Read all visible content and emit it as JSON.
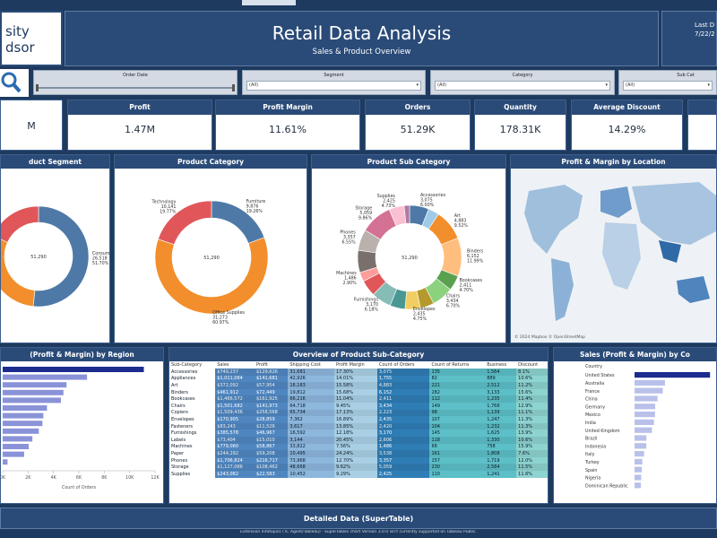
{
  "header": {
    "logo": [
      "sity",
      "dsor"
    ],
    "title": "Retail Data Analysis",
    "subtitle": "Sales & Product Overview",
    "last_updated_label": "Last D",
    "last_updated": "7/22/2"
  },
  "filters": [
    {
      "label": "Order Date"
    },
    {
      "label": "Segment",
      "value": "(All)"
    },
    {
      "label": "Category",
      "value": "(All)"
    },
    {
      "label": "Sub Cat",
      "value": "(All)"
    }
  ],
  "kpis": [
    {
      "value": "M"
    },
    {
      "label": "Profit",
      "value": "1.47M"
    },
    {
      "label": "Profit Margin",
      "value": "11.61%"
    },
    {
      "label": "Orders",
      "value": "51.29K"
    },
    {
      "label": "Quantity",
      "value": "178.31K"
    },
    {
      "label": "Average Discount",
      "value": "14.29%"
    }
  ],
  "segment_chart": {
    "type": "donut",
    "title": "duct Segment",
    "total": "51,290",
    "slices": [
      {
        "name": "Consumer",
        "value": 26518,
        "value_label": "26,518",
        "share": "51.70%",
        "color": "#4e79a7"
      },
      {
        "value": 15429,
        "color": "#f28e2b"
      },
      {
        "value": 9343,
        "color": "#e15759"
      }
    ]
  },
  "category_chart": {
    "type": "donut",
    "title": "Product Category",
    "total": "51,290",
    "slices": [
      {
        "name": "Furniture",
        "value": 9876,
        "value_label": "9,876",
        "share": "19.26%",
        "color": "#4e79a7"
      },
      {
        "name": "Office Supplies",
        "value": 31273,
        "value_label": "31,273",
        "share": "60.97%",
        "color": "#f28e2b"
      },
      {
        "name": "Technology",
        "value": 10141,
        "value_label": "10,141",
        "share": "19.77%",
        "color": "#e15759"
      }
    ]
  },
  "subcategory_chart": {
    "type": "donut",
    "title": "Product Sub Category",
    "total": "51,290",
    "slices": [
      {
        "name": "Accessories",
        "value": 3075,
        "value_label": "3,075",
        "share": "6.00%",
        "color": "#4e79a7"
      },
      {
        "value": 1755,
        "color": "#a0cbe8"
      },
      {
        "name": "Art",
        "value": 4883,
        "value_label": "4,883",
        "share": "9.52%",
        "color": "#f28e2b"
      },
      {
        "name": "Binders",
        "value": 6152,
        "value_label": "6,152",
        "share": "11.99%",
        "color": "#ffbe7d"
      },
      {
        "name": "Bookcases",
        "value": 2411,
        "value_label": "2,411",
        "share": "4.70%",
        "color": "#59a14f"
      },
      {
        "name": "Chairs",
        "value": 3434,
        "value_label": "3,434",
        "share": "6.70%",
        "color": "#8cd17d"
      },
      {
        "value": 2223,
        "color": "#b6992d"
      },
      {
        "name": "Envelopes",
        "value": 2435,
        "value_label": "2,435",
        "share": "4.75%",
        "color": "#f1ce63"
      },
      {
        "value": 2420,
        "color": "#499894"
      },
      {
        "name": "Furnishings",
        "value": 3170,
        "value_label": "3,170",
        "share": "6.18%",
        "color": "#86bcb6"
      },
      {
        "value": 2606,
        "color": "#e15759"
      },
      {
        "name": "Machines",
        "value": 1486,
        "value_label": "1,486",
        "share": "2.90%",
        "color": "#ff9d9a"
      },
      {
        "value": 3538,
        "color": "#79706e"
      },
      {
        "name": "Phones",
        "value": 3357,
        "value_label": "3,357",
        "share": "6.55%",
        "color": "#bab0ac"
      },
      {
        "name": "Storage",
        "value": 5059,
        "value_label": "5,059",
        "share": "9.86%",
        "color": "#d37295"
      },
      {
        "name": "Supplies",
        "value": 2425,
        "value_label": "2,425",
        "share": "4.73%",
        "color": "#fabfd2"
      },
      {
        "value": 861,
        "color": "#b07aa1"
      }
    ]
  },
  "map_panel": {
    "title": "Profit & Margin by Location",
    "attribution": "© 2024 Mapbox © OpenStreetMap"
  },
  "region_chart": {
    "type": "hbar",
    "title": "(Profit & Margin) by Region",
    "axis_label": "Count of Orders",
    "values": [
      11117,
      6645,
      5029,
      4785,
      4587,
      3487,
      3203,
      3129,
      2848,
      2338,
      2048,
      1690,
      384
    ],
    "color": "#8a93d8",
    "highlight_color": "#1c2b8f",
    "highlight": 0,
    "xlim": [
      0,
      12000
    ],
    "xticks": [
      {
        "value": 0,
        "label": "0K"
      },
      {
        "value": 2000,
        "label": "2K"
      },
      {
        "value": 4000,
        "label": "4K"
      },
      {
        "value": 6000,
        "label": "6K"
      },
      {
        "value": 8000,
        "label": "8K"
      },
      {
        "value": 10000,
        "label": "10K"
      },
      {
        "value": 12000,
        "label": "12K"
      }
    ]
  },
  "subcategory_table": {
    "title": "Overview of Product Sub-Category",
    "columns": [
      "Sub-Category",
      "Sales",
      "Profit",
      "Shipping Cost",
      "Profit Margin",
      "Count of Orders",
      "Count of Returns",
      "Business",
      "Discount"
    ],
    "rows": [
      [
        "Accessories",
        "$749,237",
        "$129,626",
        "31,681",
        "17.30%",
        "3,075",
        "135",
        "1,564",
        "8.1%"
      ],
      [
        "Appliances",
        "$1,011,064",
        "$141,681",
        "42,926",
        "14.01%",
        "1,755",
        "82",
        "889",
        "10.6%"
      ],
      [
        "Art",
        "$372,092",
        "$57,954",
        "16,183",
        "15.58%",
        "4,883",
        "221",
        "2,512",
        "11.2%"
      ],
      [
        "Binders",
        "$461,912",
        "$72,449",
        "19,812",
        "15.68%",
        "6,152",
        "282",
        "3,133",
        "15.6%"
      ],
      [
        "Bookcases",
        "$1,466,572",
        "$161,925",
        "66,216",
        "11.04%",
        "2,411",
        "112",
        "1,235",
        "11.4%"
      ],
      [
        "Chairs",
        "$1,501,682",
        "$141,973",
        "64,718",
        "9.45%",
        "3,434",
        "149",
        "1,768",
        "12.9%"
      ],
      [
        "Copiers",
        "$1,509,436",
        "$258,568",
        "65,734",
        "17.13%",
        "2,223",
        "98",
        "1,139",
        "11.1%"
      ],
      [
        "Envelopes",
        "$170,905",
        "$28,859",
        "7,362",
        "16.89%",
        "2,435",
        "107",
        "1,247",
        "11.3%"
      ],
      [
        "Fasteners",
        "$83,243",
        "$11,526",
        "3,617",
        "13.85%",
        "2,420",
        "104",
        "1,232",
        "11.3%"
      ],
      [
        "Furnishings",
        "$385,578",
        "$46,967",
        "16,592",
        "12.18%",
        "3,170",
        "145",
        "1,625",
        "13.9%"
      ],
      [
        "Labels",
        "$73,404",
        "$15,010",
        "3,144",
        "20.45%",
        "2,606",
        "118",
        "1,330",
        "10.6%"
      ],
      [
        "Machines",
        "$779,060",
        "$58,867",
        "33,822",
        "7.56%",
        "1,486",
        "66",
        "758",
        "15.9%"
      ],
      [
        "Paper",
        "$244,292",
        "$59,208",
        "10,495",
        "24.24%",
        "3,538",
        "161",
        "1,808",
        "7.6%"
      ],
      [
        "Phones",
        "$1,706,824",
        "$216,717",
        "73,968",
        "12.70%",
        "3,357",
        "157",
        "1,719",
        "12.0%"
      ],
      [
        "Storage",
        "$1,127,086",
        "$108,462",
        "48,668",
        "9.62%",
        "5,059",
        "230",
        "2,584",
        "11.5%"
      ],
      [
        "Supplies",
        "$243,082",
        "$22,583",
        "10,452",
        "9.29%",
        "2,425",
        "110",
        "1,241",
        "11.6%"
      ]
    ]
  },
  "country_chart": {
    "type": "hbar",
    "title": "Sales (Profit & Margin) by Co",
    "axis_label": "Country",
    "categories": [
      "United States",
      "Australia",
      "France",
      "China",
      "Germany",
      "Mexico",
      "India",
      "United Kingdom",
      "Brazil",
      "Indonesia",
      "Italy",
      "Turkey",
      "Spain",
      "Nigeria",
      "Dominican Republic"
    ],
    "values": [
      2297201,
      925236,
      858931,
      700562,
      628840,
      622591,
      589650,
      528576,
      361106,
      358124,
      289710,
      235770,
      221920,
      203591,
      193716
    ],
    "color": "#b9c0ea",
    "highlight_color": "#1c2b8f",
    "highlight": 0,
    "xlim": [
      0,
      2400000
    ]
  },
  "footer": {
    "section": "Detailed Data (SuperTable)",
    "note": "Extension Infotopics (TC Agent/Tableau) · SuperTables chart Version 3.0.0 isn't currently supported on Tableau Public."
  }
}
